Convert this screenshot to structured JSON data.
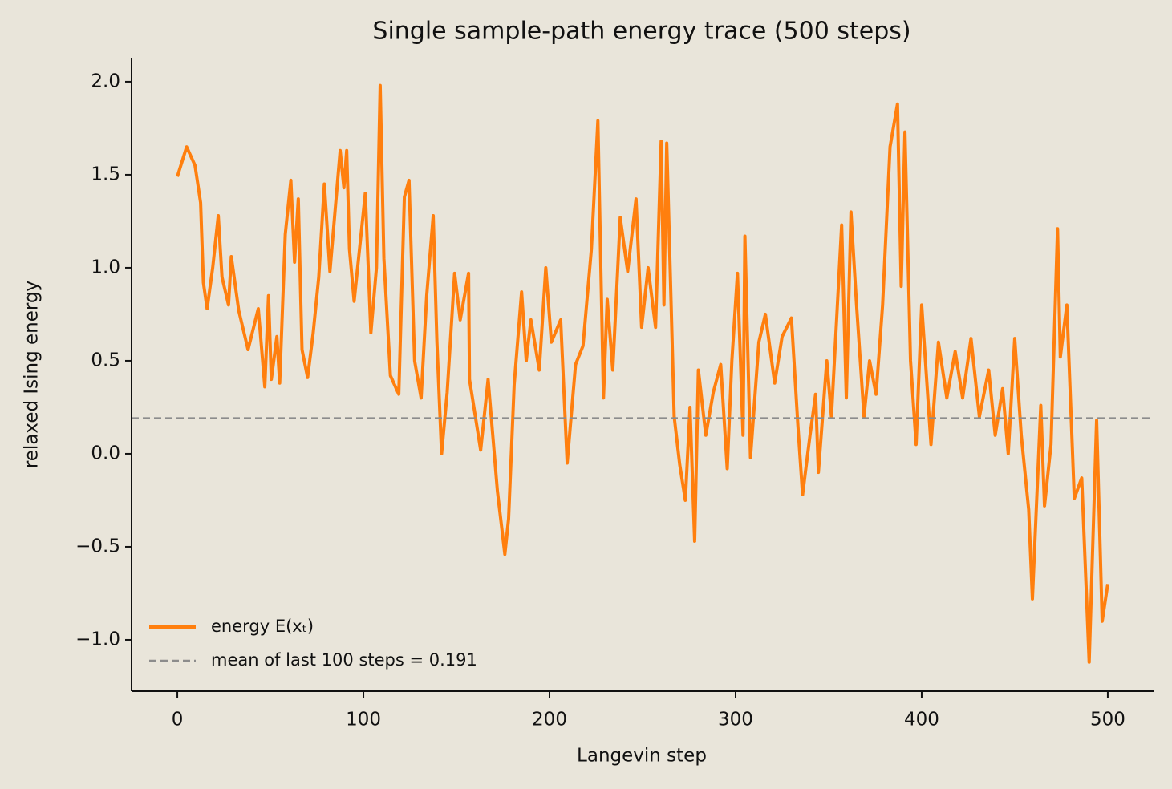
{
  "chart_data": {
    "type": "line",
    "title": "Single sample-path energy trace  (500 steps)",
    "x_label": "Langevin step",
    "y_label": "relaxed Ising energy",
    "x": [
      0,
      5,
      9.5,
      12.5,
      14,
      16,
      19,
      22,
      24,
      27.5,
      29,
      33,
      38,
      43.5,
      47,
      49,
      50.5,
      53.5,
      55,
      58,
      61,
      63,
      65,
      67,
      70,
      73,
      76,
      79,
      82,
      87.5,
      89.5,
      91,
      92.5,
      95,
      101,
      104,
      107,
      109,
      111,
      114.5,
      119,
      122,
      124.5,
      127.5,
      131,
      134,
      137.5,
      139.5,
      142,
      145,
      149,
      152,
      156.5,
      157,
      163,
      167,
      172,
      176,
      178,
      181,
      185,
      187.5,
      190,
      194.5,
      198,
      201,
      206,
      209.5,
      214,
      218,
      222.5,
      226,
      229,
      231,
      234,
      238,
      242,
      246.5,
      249.5,
      253,
      257,
      260,
      261.5,
      263,
      267,
      270,
      273,
      275.5,
      278,
      280,
      284,
      288,
      292,
      295.5,
      298,
      301,
      304,
      305,
      308,
      312.5,
      316,
      321,
      325,
      330,
      333.5,
      336,
      340,
      343,
      344.5,
      349,
      351.5,
      357,
      359.5,
      362,
      365,
      369,
      372,
      375.5,
      379,
      383,
      387,
      389,
      391,
      394,
      397,
      400,
      405,
      409,
      413.5,
      418,
      422,
      426.5,
      431,
      436,
      439.5,
      443.5,
      446.5,
      450,
      453.5,
      457.5,
      459.5,
      464,
      466,
      469.5,
      473,
      474.5,
      478,
      482,
      486,
      490,
      494,
      497,
      500
    ],
    "series": [
      {
        "name": "energy E(xₜ)",
        "color": "#ff7f0e",
        "values": [
          1.49,
          1.65,
          1.55,
          1.35,
          0.92,
          0.78,
          1.0,
          1.28,
          0.95,
          0.8,
          1.06,
          0.77,
          0.56,
          0.78,
          0.36,
          0.85,
          0.4,
          0.63,
          0.38,
          1.18,
          1.47,
          1.03,
          1.37,
          0.56,
          0.41,
          0.65,
          0.95,
          1.45,
          0.98,
          1.63,
          1.43,
          1.63,
          1.1,
          0.82,
          1.4,
          0.65,
          1.0,
          1.98,
          1.05,
          0.42,
          0.32,
          1.38,
          1.47,
          0.5,
          0.3,
          0.85,
          1.28,
          0.6,
          0.0,
          0.33,
          0.97,
          0.72,
          0.97,
          0.4,
          0.02,
          0.4,
          -0.2,
          -0.54,
          -0.35,
          0.37,
          0.87,
          0.5,
          0.72,
          0.45,
          1.0,
          0.6,
          0.72,
          -0.05,
          0.48,
          0.58,
          1.1,
          1.79,
          0.3,
          0.83,
          0.45,
          1.27,
          0.98,
          1.37,
          0.68,
          1.0,
          0.68,
          1.68,
          0.8,
          1.67,
          0.2,
          -0.06,
          -0.25,
          0.25,
          -0.47,
          0.45,
          0.1,
          0.33,
          0.48,
          -0.08,
          0.5,
          0.97,
          0.1,
          1.17,
          -0.02,
          0.6,
          0.75,
          0.38,
          0.63,
          0.73,
          0.15,
          -0.22,
          0.1,
          0.32,
          -0.1,
          0.5,
          0.2,
          1.23,
          0.3,
          1.3,
          0.8,
          0.2,
          0.5,
          0.32,
          0.8,
          1.65,
          1.88,
          0.9,
          1.73,
          0.5,
          0.05,
          0.8,
          0.05,
          0.6,
          0.3,
          0.55,
          0.3,
          0.62,
          0.2,
          0.45,
          0.1,
          0.35,
          0.0,
          0.62,
          0.1,
          -0.3,
          -0.78,
          0.26,
          -0.28,
          0.05,
          1.21,
          0.52,
          0.8,
          -0.24,
          -0.13,
          -1.12,
          0.18,
          -0.9,
          -0.7
        ]
      }
    ],
    "hline": {
      "name": "mean of last 100 steps = 0.191",
      "value": 0.191,
      "color": "#8c8c8c",
      "style": "dashed"
    },
    "xlim": [
      -24.6,
      524.6
    ],
    "xticks": [
      0,
      100,
      200,
      300,
      400,
      500
    ],
    "ylim": [
      -1.276,
      2.129
    ],
    "yticks": [
      {
        "value": -1.0,
        "label": "−1.0"
      },
      {
        "value": -0.5,
        "label": "−0.5"
      },
      {
        "value": 0,
        "label": "0.0"
      },
      0.5,
      {
        "value": 1.0,
        "label": "1.0"
      },
      1.5,
      {
        "value": 2.0,
        "label": "2.0"
      }
    ],
    "grid": false,
    "legend": "lower left"
  }
}
